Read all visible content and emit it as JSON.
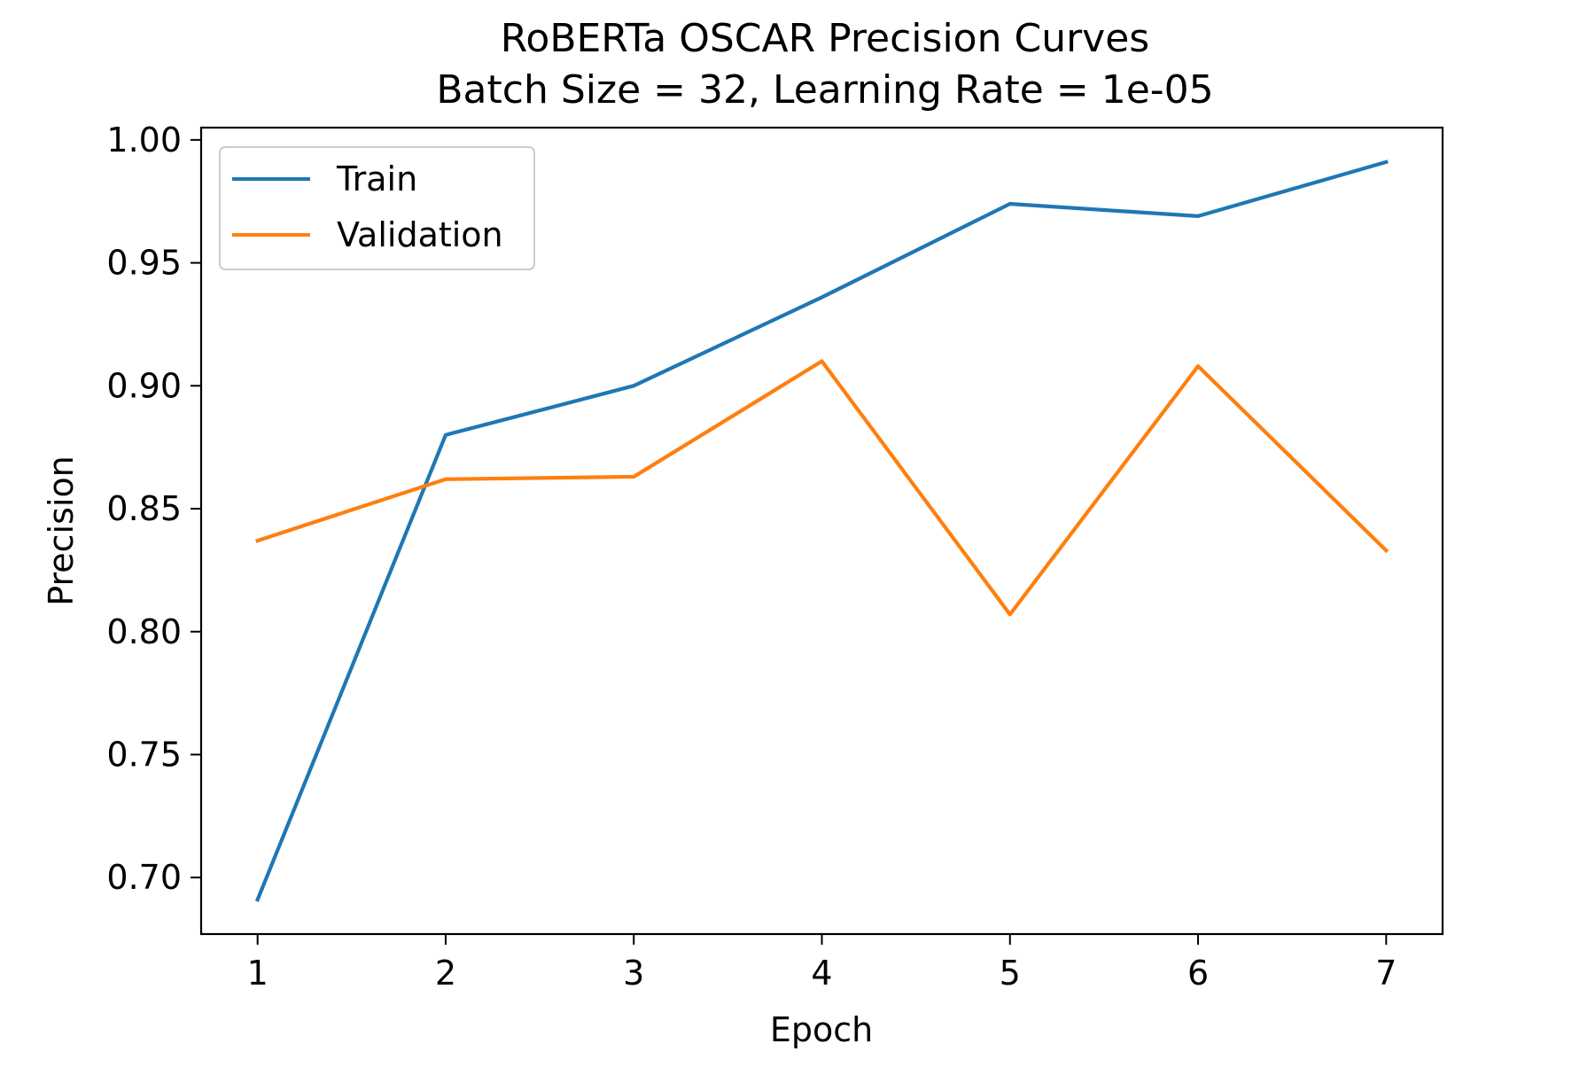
{
  "chart_data": {
    "type": "line",
    "title_line1": "RoBERTa OSCAR Precision Curves",
    "title_line2": "Batch Size = 32, Learning Rate = 1e-05",
    "xlabel": "Epoch",
    "ylabel": "Precision",
    "x": [
      1,
      2,
      3,
      4,
      5,
      6,
      7
    ],
    "xlim": [
      0.7,
      7.3
    ],
    "ylim": [
      0.677,
      1.005
    ],
    "x_ticks": [
      1,
      2,
      3,
      4,
      5,
      6,
      7
    ],
    "x_tick_labels": [
      "1",
      "2",
      "3",
      "4",
      "5",
      "6",
      "7"
    ],
    "y_ticks": [
      0.7,
      0.75,
      0.8,
      0.85,
      0.9,
      0.95,
      1.0
    ],
    "y_tick_labels": [
      "0.70",
      "0.75",
      "0.80",
      "0.85",
      "0.90",
      "0.95",
      "1.00"
    ],
    "grid": false,
    "legend_position": "upper-left",
    "series": [
      {
        "name": "Train",
        "color": "#1f77b4",
        "values": [
          0.691,
          0.88,
          0.9,
          0.936,
          0.974,
          0.969,
          0.991
        ]
      },
      {
        "name": "Validation",
        "color": "#ff7f0e",
        "values": [
          0.837,
          0.862,
          0.863,
          0.91,
          0.807,
          0.908,
          0.833
        ]
      }
    ]
  }
}
